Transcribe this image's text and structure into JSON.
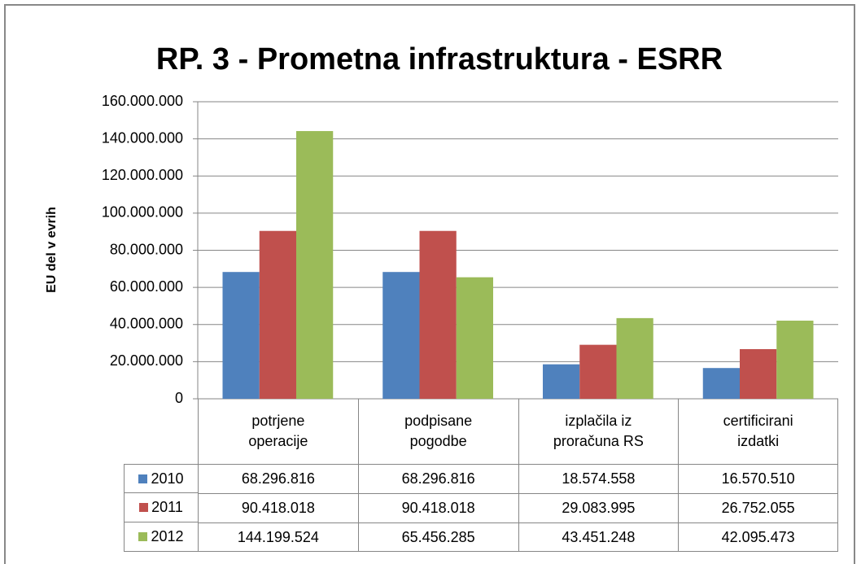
{
  "chart_data": {
    "type": "bar",
    "title": "RP. 3 - Prometna infrastruktura - ESRR",
    "y_label": "EU del v evrih",
    "categories": [
      "potrjene\noperacije",
      "podpisane\npogodbe",
      "izplačila iz\nproračuna RS",
      "certificirani\nizdatki"
    ],
    "series": [
      {
        "name": "2010",
        "color": "#4f81bd",
        "values": [
          68296816,
          68296816,
          18574558,
          16570510
        ],
        "value_labels": [
          "68.296.816",
          "68.296.816",
          "18.574.558",
          "16.570.510"
        ]
      },
      {
        "name": "2011",
        "color": "#c0504d",
        "values": [
          90418018,
          90418018,
          29083995,
          26752055
        ],
        "value_labels": [
          "90.418.018",
          "90.418.018",
          "29.083.995",
          "26.752.055"
        ]
      },
      {
        "name": "2012",
        "color": "#9bbb59",
        "values": [
          144199524,
          65456285,
          43451248,
          42095473
        ],
        "value_labels": [
          "144.199.524",
          "65.456.285",
          "43.451.248",
          "42.095.473"
        ]
      }
    ],
    "ylim": [
      0,
      160000000
    ],
    "yticks": [
      0,
      {
        "value": 20000000,
        "label": "20.000.000"
      },
      {
        "value": 40000000,
        "label": "40.000.000"
      },
      {
        "value": 60000000,
        "label": "60.000.000"
      },
      {
        "value": 80000000,
        "label": "80.000.000"
      },
      {
        "value": 100000000,
        "label": "100.000.000"
      },
      {
        "value": 120000000,
        "label": "120.000.000"
      },
      {
        "value": 140000000,
        "label": "140.000.000"
      },
      {
        "value": 160000000,
        "label": "160.000.000"
      }
    ],
    "grid": true,
    "data_table": true
  }
}
